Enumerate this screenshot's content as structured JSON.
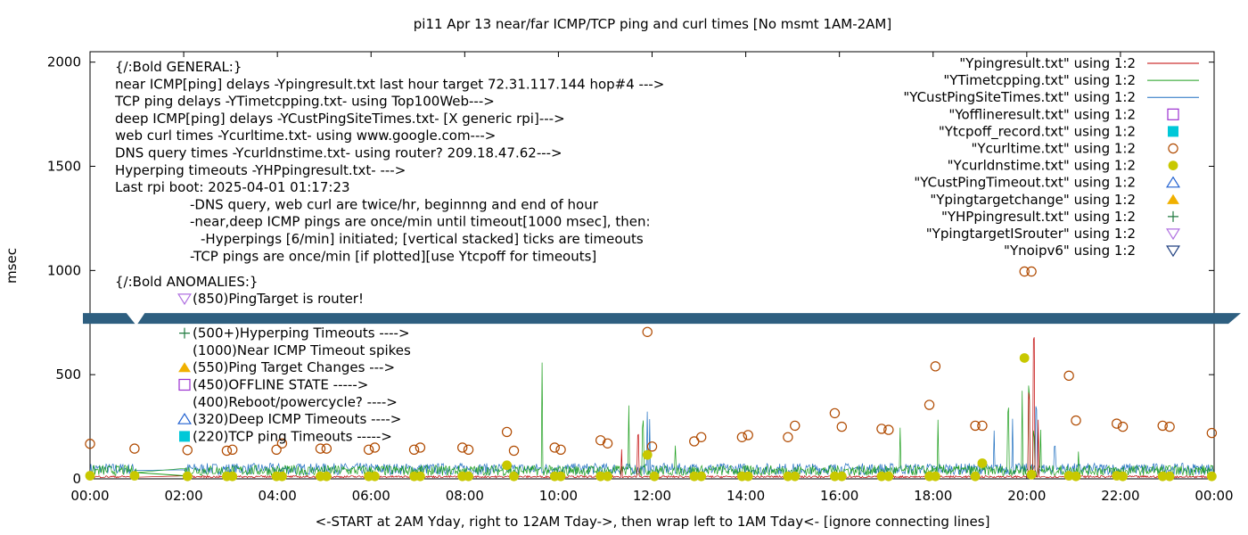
{
  "chart_data": {
    "type": "line",
    "title": "pi11 Apr 13  near/far ICMP/TCP ping and curl times [No msmt 1AM-2AM]",
    "xlabel": "<-START at 2AM Yday, right to 12AM Tday->, then wrap left to 1AM Tday<- [ignore connecting lines]",
    "ylabel": "msec",
    "xlim": [
      0,
      24
    ],
    "ylim": [
      0,
      2050
    ],
    "x_ticks": [
      {
        "v": 0,
        "label": "00:00"
      },
      {
        "v": 2,
        "label": "02:00"
      },
      {
        "v": 4,
        "label": "04:00"
      },
      {
        "v": 6,
        "label": "06:00"
      },
      {
        "v": 8,
        "label": "08:00"
      },
      {
        "v": 10,
        "label": "10:00"
      },
      {
        "v": 12,
        "label": "12:00"
      },
      {
        "v": 14,
        "label": "14:00"
      },
      {
        "v": 16,
        "label": "16:00"
      },
      {
        "v": 18,
        "label": "18:00"
      },
      {
        "v": 20,
        "label": "20:00"
      },
      {
        "v": 22,
        "label": "22:00"
      },
      {
        "v": 24,
        "label": "00:00"
      }
    ],
    "y_ticks": [
      {
        "v": 0,
        "label": "0"
      },
      {
        "v": 500,
        "label": "500"
      },
      {
        "v": 1000,
        "label": "1000"
      },
      {
        "v": 1500,
        "label": "1500"
      },
      {
        "v": 2000,
        "label": "2000"
      }
    ],
    "axis_break": {
      "y": 770,
      "bar_color": "#2e5f80"
    },
    "legend_placement": "top-right",
    "legend": [
      {
        "label": "\"Ypingresult.txt\" using 1:2",
        "kind": "line",
        "color": "#c00000"
      },
      {
        "label": "\"YTimetcpping.txt\" using 1:2",
        "kind": "line",
        "color": "#1c9e1c"
      },
      {
        "label": "\"YCustPingSiteTimes.txt\" using 1:2",
        "kind": "line",
        "color": "#1f6fc0"
      },
      {
        "label": "\"Yofflineresult.txt\" using 1:2",
        "kind": "square-open",
        "color": "#9b30d0"
      },
      {
        "label": "\"Ytcpoff_record.txt\" using 1:2",
        "kind": "square-filled",
        "color": "#00c8d8"
      },
      {
        "label": "\"Ycurltime.txt\" using 1:2",
        "kind": "circle-open",
        "color": "#b04a00"
      },
      {
        "label": "\"Ycurldnstime.txt\" using 1:2",
        "kind": "circle-filled",
        "color": "#c8c800"
      },
      {
        "label": "\"YCustPingTimeout.txt\" using 1:2",
        "kind": "triangle-open",
        "color": "#2060d0"
      },
      {
        "label": "\"Ypingtargetchange\" using 1:2",
        "kind": "triangle-filled",
        "color": "#f0b000"
      },
      {
        "label": "\"YHPpingresult.txt\" using 1:2",
        "kind": "plus",
        "color": "#207a40"
      },
      {
        "label": "\"YpingtargetISrouter\" using 1:2",
        "kind": "triangle-down-open",
        "color": "#b070e0"
      },
      {
        "label": "\"Ynoipv6\" using 1:2",
        "kind": "triangle-down-open",
        "color": "#204080"
      }
    ],
    "notes": [
      "{/:Bold GENERAL:}",
      "near ICMP[ping] delays -Ypingresult.txt last hour target 72.31.117.144 hop#4 --->",
      "TCP ping delays -YTimetcpping.txt- using Top100Web--->",
      "deep ICMP[ping] delays -YCustPingSiteTimes.txt- [X generic rpi]--->",
      "web curl times -Ycurltime.txt- using www.google.com--->",
      "DNS query times -Ycurldnstime.txt- using router? 209.18.47.62--->",
      "Hyperping timeouts -YHPpingresult.txt- --->",
      "Last rpi boot: 2025-04-01 01:17:23",
      "-DNS query, web curl are twice/hr, beginnng and end of hour",
      "-near,deep ICMP pings are once/min until timeout[1000 msec], then:",
      "-Hyperpings [6/min] initiated; [vertical stacked] ticks are timeouts",
      "-TCP pings are once/min [if plotted][use Ytcpoff for timeouts]",
      "{/:Bold ANOMALIES:}"
    ],
    "anomalies": [
      {
        "label": "(850)PingTarget is router!",
        "kind": "triangle-down-open",
        "color": "#b070e0"
      },
      {
        "label": "(500+)Hyperping Timeouts ---->",
        "kind": "plus",
        "color": "#207a40"
      },
      {
        "label": "(1000)Near ICMP Timeout spikes",
        "kind": "none",
        "color": "#000000"
      },
      {
        "label": "(550)Ping Target Changes --->",
        "kind": "triangle-filled",
        "color": "#f0b000"
      },
      {
        "label": "(450)OFFLINE STATE ----->",
        "kind": "square-open",
        "color": "#9b30d0"
      },
      {
        "label": "(400)Reboot/powercycle? ---->",
        "kind": "none",
        "color": "#000000"
      },
      {
        "label": "(320)Deep ICMP Timeouts ---->",
        "kind": "triangle-open",
        "color": "#2060d0"
      },
      {
        "label": "(220)TCP ping Timeouts ----->",
        "kind": "square-filled",
        "color": "#00c8d8"
      }
    ],
    "series": [
      {
        "name": "\"Ycurltime.txt\" using 1:2",
        "color": "#b04a00",
        "x": [
          0.0,
          0.95,
          2.08,
          2.92,
          3.04,
          3.98,
          4.1,
          4.92,
          5.05,
          5.95,
          6.08,
          6.92,
          7.05,
          7.95,
          8.08,
          8.9,
          9.05,
          9.92,
          10.05,
          10.9,
          11.05,
          11.9,
          12.0,
          12.9,
          13.05,
          13.92,
          14.05,
          14.9,
          15.05,
          15.9,
          16.05,
          16.9,
          17.05,
          17.92,
          18.05,
          18.9,
          19.05,
          19.95,
          20.1,
          20.9,
          21.05,
          21.92,
          22.05,
          22.9,
          23.05,
          23.95
        ],
        "y": [
          168,
          145,
          138,
          135,
          140,
          140,
          170,
          145,
          145,
          140,
          150,
          140,
          150,
          150,
          140,
          225,
          135,
          150,
          140,
          185,
          170,
          705,
          155,
          180,
          200,
          200,
          210,
          200,
          255,
          315,
          250,
          240,
          235,
          355,
          540,
          255,
          255,
          995,
          995,
          495,
          280,
          265,
          250,
          255,
          250,
          220
        ]
      },
      {
        "name": "\"Ycurldnstime.txt\" using 1:2",
        "color": "#c8c800",
        "x": [
          0.0,
          0.95,
          2.08,
          2.92,
          3.04,
          3.98,
          4.1,
          4.92,
          5.05,
          5.95,
          6.08,
          6.92,
          7.05,
          7.95,
          8.08,
          8.9,
          9.05,
          9.92,
          10.05,
          10.9,
          11.05,
          11.9,
          12.05,
          12.9,
          13.05,
          13.92,
          14.05,
          14.9,
          15.05,
          15.9,
          16.05,
          16.9,
          17.05,
          17.92,
          18.05,
          18.9,
          19.05,
          19.95,
          20.1,
          20.9,
          21.05,
          21.92,
          22.05,
          22.9,
          23.05,
          23.95
        ],
        "y": [
          15,
          15,
          12,
          12,
          12,
          12,
          12,
          12,
          12,
          12,
          12,
          12,
          12,
          12,
          12,
          65,
          12,
          12,
          12,
          12,
          12,
          115,
          12,
          12,
          12,
          12,
          12,
          12,
          12,
          12,
          12,
          12,
          12,
          12,
          12,
          12,
          75,
          580,
          20,
          15,
          12,
          15,
          12,
          12,
          12,
          12
        ]
      }
    ]
  }
}
